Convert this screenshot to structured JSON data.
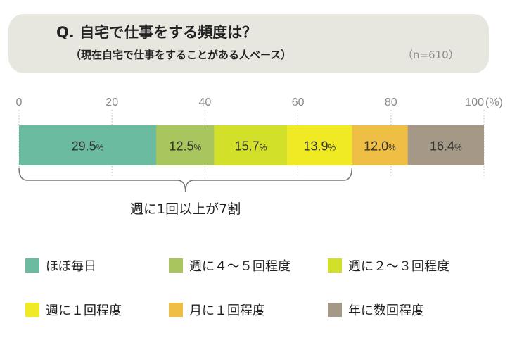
{
  "header": {
    "title": "Q. 自宅で仕事をする頻度は？",
    "subtitle": "（現在自宅で仕事をすることがある人ベース）",
    "sample": "（n=610）"
  },
  "chart_data": {
    "type": "bar",
    "orientation": "horizontal-stacked",
    "xlim": [
      0,
      100
    ],
    "tick_labels": [
      "0",
      "20",
      "40",
      "60",
      "80",
      "100"
    ],
    "unit_label": "(%)",
    "series": [
      {
        "name": "ほぼ毎日",
        "value": 29.5,
        "color": "#6bbba0"
      },
      {
        "name": "週に４～５回程度",
        "value": 12.5,
        "color": "#a9c55e"
      },
      {
        "name": "週に２～３回程度",
        "value": 15.7,
        "color": "#d3e02a"
      },
      {
        "name": "週に１回程度",
        "value": 13.9,
        "color": "#f0ea24"
      },
      {
        "name": "月に１回程度",
        "value": 12.0,
        "color": "#efbf45"
      },
      {
        "name": "年に数回程度",
        "value": 16.4,
        "color": "#a59886"
      }
    ],
    "value_unit": "%",
    "bracket_annotation": "週に1回以上が7割",
    "grid": "dotted vertical",
    "legend_position": "bottom"
  }
}
